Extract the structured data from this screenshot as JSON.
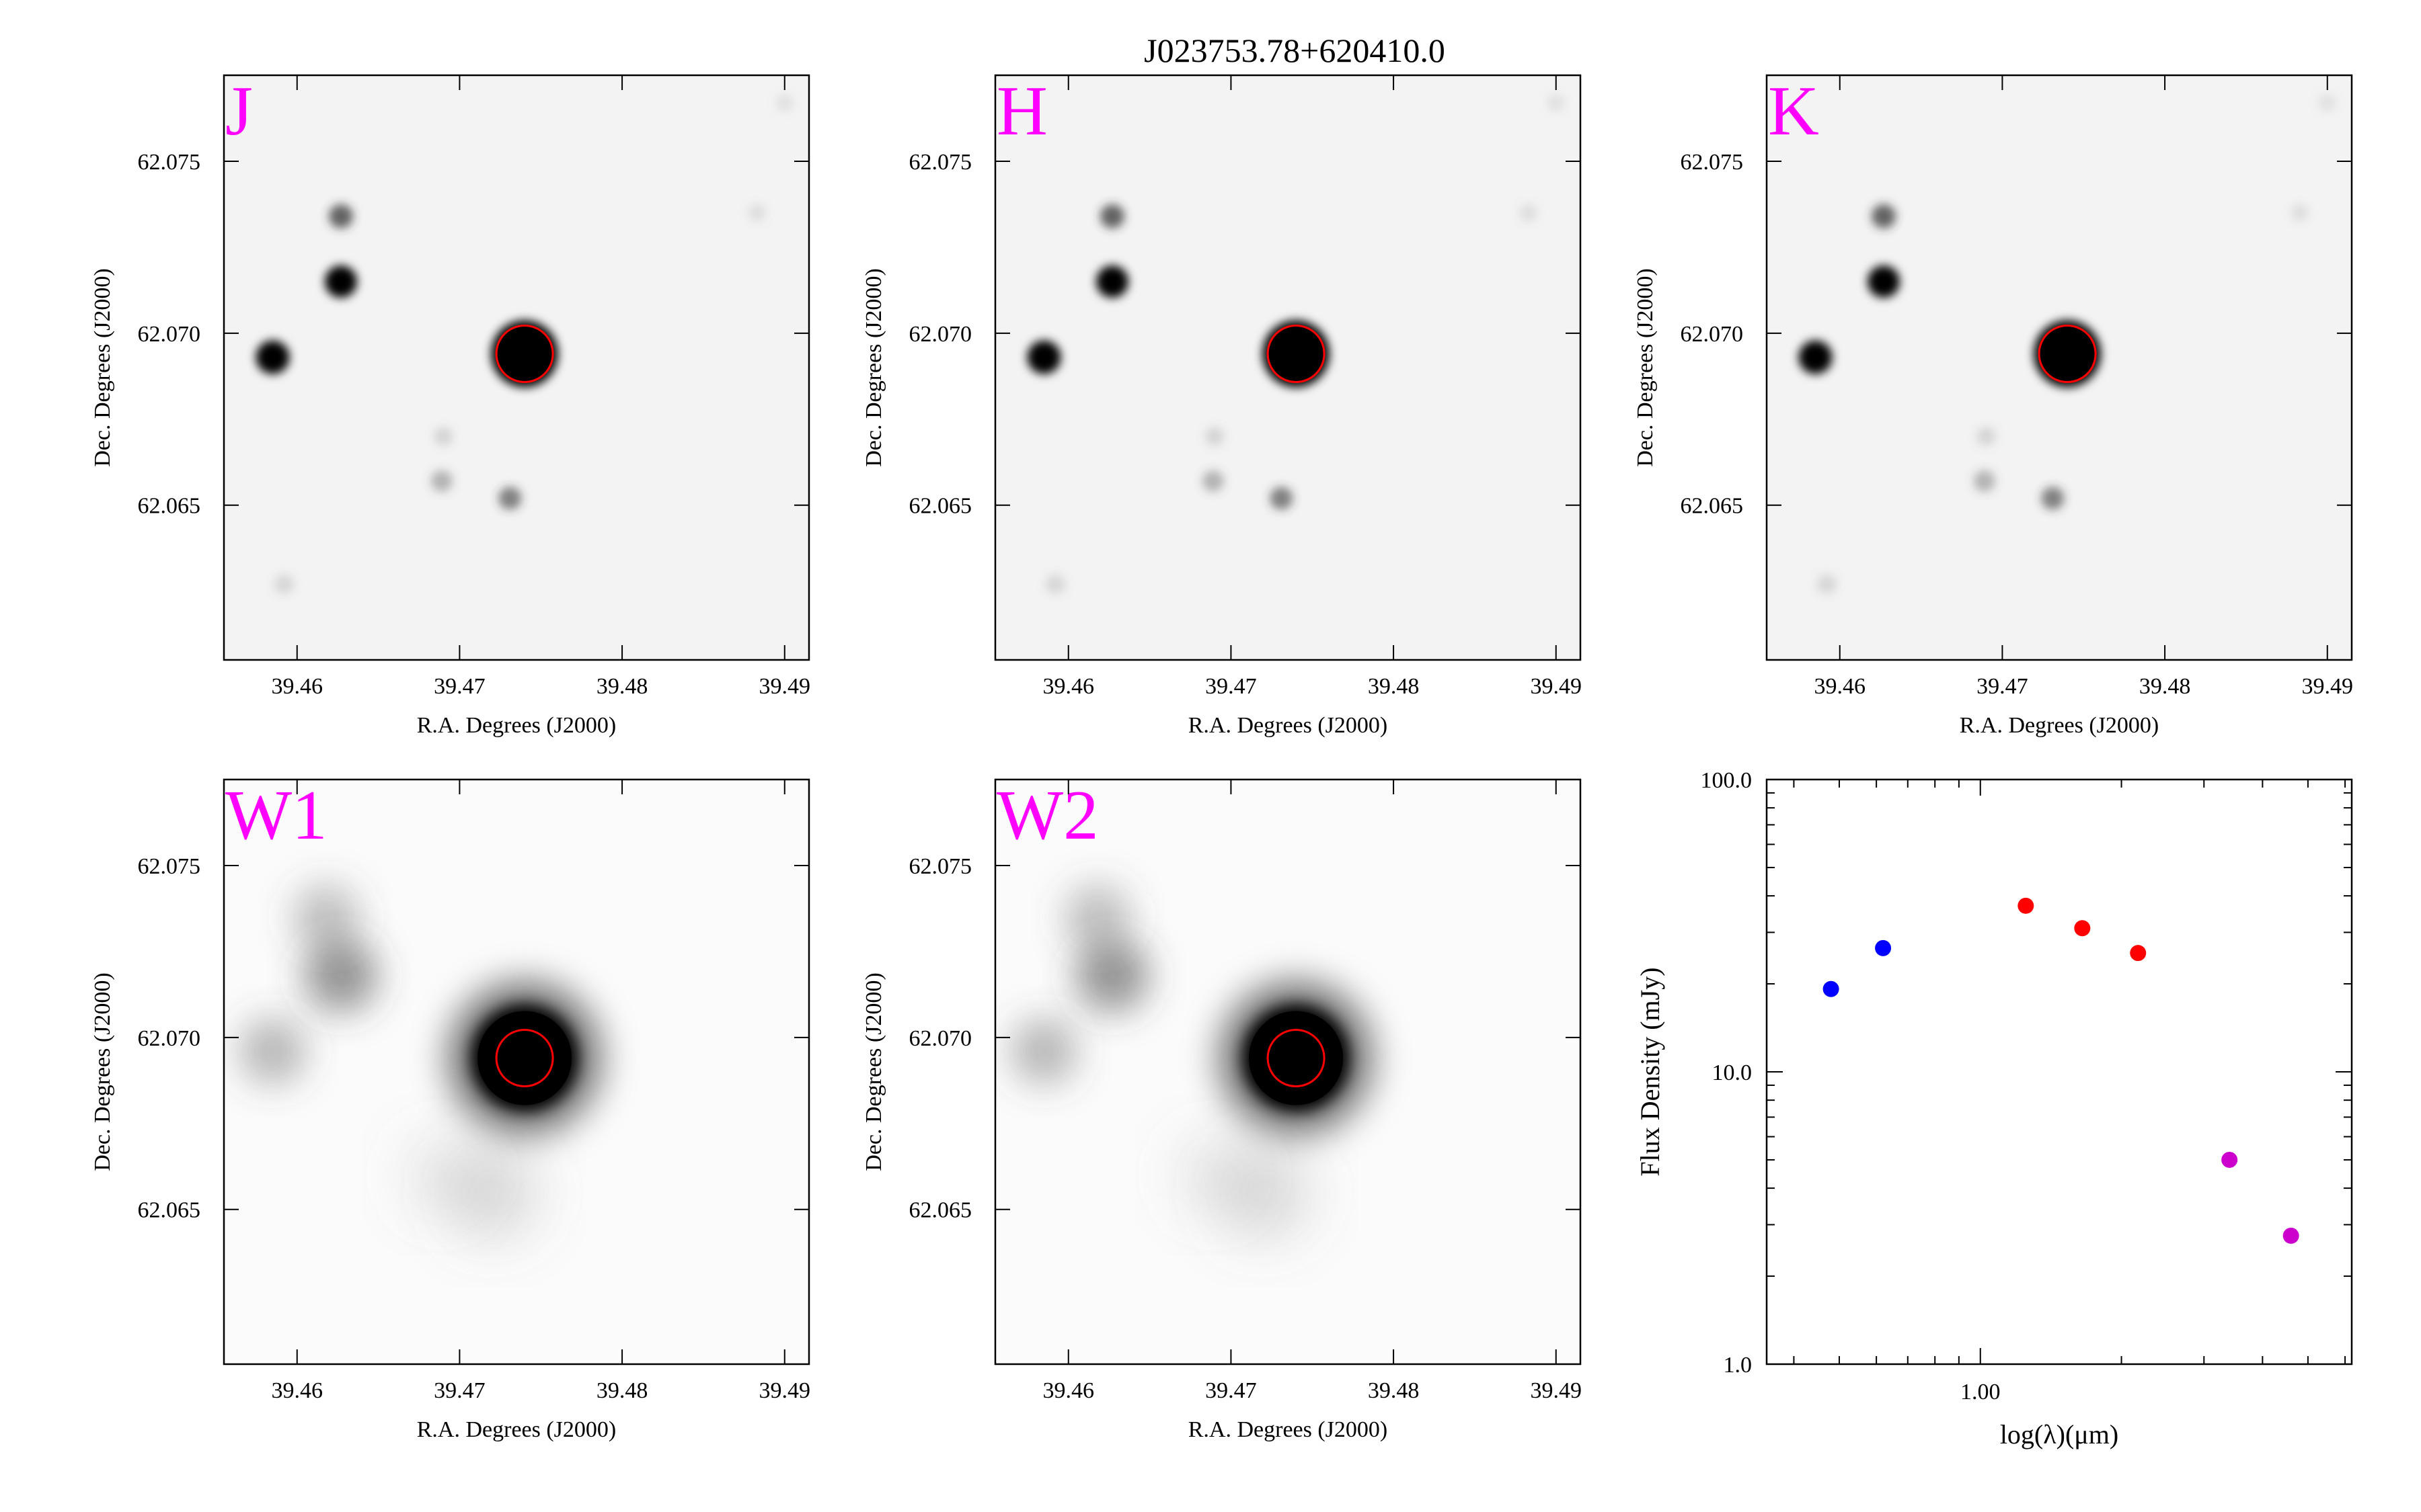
{
  "figure_title": "J023753.78+620410.0",
  "colors": {
    "band_label": "#ff00ff",
    "aperture": "#ff0000"
  },
  "image_panels": [
    {
      "band": "J",
      "xlabel": "R.A. Degrees (J2000)",
      "ylabel": "Dec. Degrees (J2000)"
    },
    {
      "band": "H",
      "xlabel": "R.A. Degrees (J2000)",
      "ylabel": "Dec. Degrees (J2000)"
    },
    {
      "band": "K",
      "xlabel": "R.A. Degrees (J2000)",
      "ylabel": "Dec. Degrees (J2000)"
    },
    {
      "band": "W1",
      "xlabel": "R.A. Degrees (J2000)",
      "ylabel": "Dec. Degrees (J2000)"
    },
    {
      "band": "W2",
      "xlabel": "R.A. Degrees (J2000)",
      "ylabel": "Dec. Degrees (J2000)"
    }
  ],
  "image_axes": {
    "x_ticks": [
      "39.46",
      "39.47",
      "39.48",
      "39.49"
    ],
    "y_ticks": [
      "62.075",
      "62.070",
      "62.065"
    ],
    "x_tick_values": [
      39.46,
      39.47,
      39.48,
      39.49
    ],
    "y_tick_values": [
      62.075,
      62.07,
      62.065
    ],
    "xlim": [
      39.4555,
      39.4915
    ],
    "ylim": [
      62.0605,
      62.0775
    ]
  },
  "chart_data": {
    "type": "scatter",
    "xlabel": "log(λ)(μm)",
    "ylabel": "Flux Density (mJy)",
    "y_scale": "log",
    "x_scale": "log",
    "ylim": [
      1.0,
      100.0
    ],
    "xlim": [
      0.35,
      6.2
    ],
    "y_tick_labels": [
      "100.0",
      "10.0",
      "1.0"
    ],
    "y_tick_values": [
      100.0,
      10.0,
      1.0
    ],
    "x_tick_labels": [
      "1.00"
    ],
    "x_tick_values": [
      1.0
    ],
    "series": [
      {
        "color": "#0000ff",
        "points": [
          [
            0.48,
            19.2
          ],
          [
            0.62,
            26.5
          ]
        ]
      },
      {
        "color": "#ff0000",
        "points": [
          [
            1.25,
            37.0
          ],
          [
            1.65,
            31.0
          ],
          [
            2.17,
            25.5
          ]
        ]
      },
      {
        "color": "#cc00cc",
        "points": [
          [
            3.4,
            5.0
          ],
          [
            4.6,
            2.75
          ]
        ]
      }
    ]
  }
}
